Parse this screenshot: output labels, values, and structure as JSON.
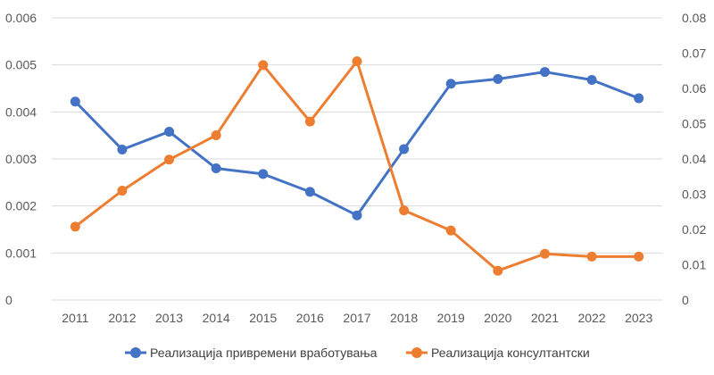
{
  "chart_data": {
    "type": "line",
    "title": "",
    "xlabel": "",
    "ylabel": "",
    "categories": [
      "2011",
      "2012",
      "2013",
      "2014",
      "2015",
      "2016",
      "2017",
      "2018",
      "2019",
      "2020",
      "2021",
      "2022",
      "2023"
    ],
    "y_left": {
      "range": [
        0,
        0.006
      ],
      "ticks": [
        "0",
        "0.001",
        "0.002",
        "0.003",
        "0.004",
        "0.005",
        "0.006"
      ]
    },
    "y_right": {
      "range": [
        0,
        0.08
      ],
      "ticks": [
        "0",
        "0.01",
        "0.02",
        "0.03",
        "0.04",
        "0.05",
        "0.06",
        "0.07",
        "0.08"
      ]
    },
    "grid": true,
    "legend_position": "bottom",
    "series": [
      {
        "name": "Реализација привремени вработувања",
        "axis": "left",
        "color": "#4472C4",
        "values": [
          0.00422,
          0.0032,
          0.00358,
          0.0028,
          0.00268,
          0.0023,
          0.0018,
          0.00321,
          0.0046,
          0.0047,
          0.00485,
          0.00468,
          0.00429
        ]
      },
      {
        "name": "Реализација консултантски",
        "axis": "right",
        "color": "#ED7D31",
        "values": [
          0.0208,
          0.031,
          0.0398,
          0.0467,
          0.0666,
          0.0506,
          0.0677,
          0.0254,
          0.0197,
          0.0083,
          0.0131,
          0.0123,
          0.0123
        ]
      }
    ]
  }
}
